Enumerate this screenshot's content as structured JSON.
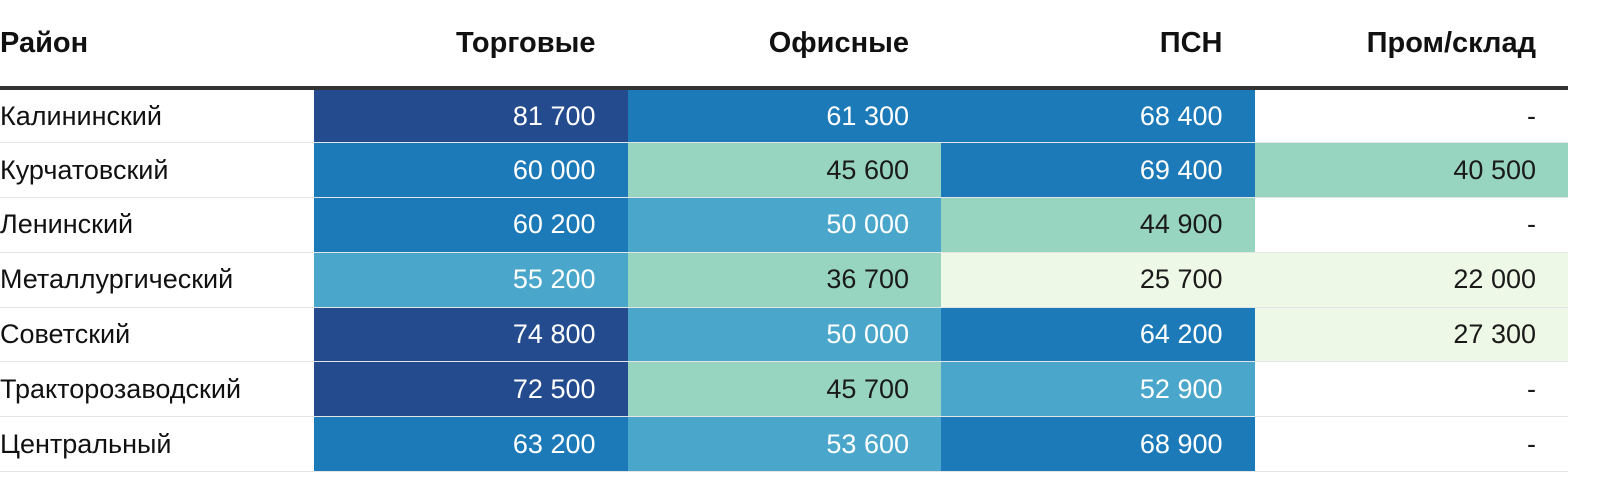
{
  "chart_data": {
    "type": "table",
    "columns": [
      "Район",
      "Торговые",
      "Офисные",
      "ПСН",
      "Пром/склад"
    ],
    "rows": [
      {
        "name": "Калининский",
        "values": [
          "81 700",
          "61 300",
          "68 400",
          "-"
        ]
      },
      {
        "name": "Курчатовский",
        "values": [
          "60 000",
          "45 600",
          "69 400",
          "40 500"
        ]
      },
      {
        "name": "Ленинский",
        "values": [
          "60 200",
          "50 000",
          "44 900",
          "-"
        ]
      },
      {
        "name": "Металлургический",
        "values": [
          "55 200",
          "36 700",
          "25 700",
          "22 000"
        ]
      },
      {
        "name": "Советский",
        "values": [
          "74 800",
          "50 000",
          "64 200",
          "27 300"
        ]
      },
      {
        "name": "Тракторозаводский",
        "values": [
          "72 500",
          "45 700",
          "52 900",
          "-"
        ]
      },
      {
        "name": "Центральный",
        "values": [
          "63 200",
          "53 600",
          "68 900",
          "-"
        ]
      }
    ],
    "color_scale": {
      "colors": [
        "#eef8e6",
        "#97d5c0",
        "#4aa7cb",
        "#1d7ab9",
        "#234b8e"
      ],
      "thresholds": [
        30000,
        50000,
        60000,
        70000
      ],
      "light_text": "#ffffff",
      "dark_text": "#1a1a1a",
      "empty_color": "#ffffff"
    }
  }
}
